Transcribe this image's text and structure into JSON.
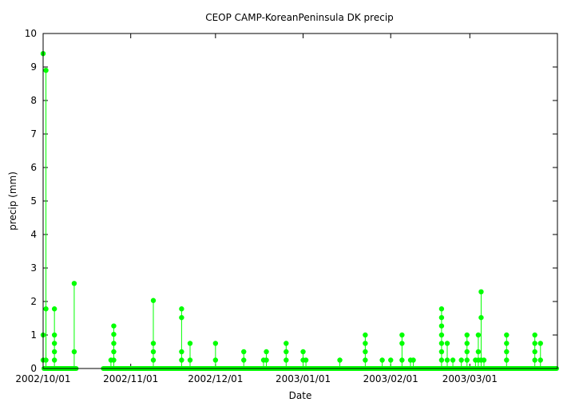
{
  "chart_data": {
    "type": "line",
    "title": "CEOP CAMP-KoreanPeninsula DK  precip",
    "xlabel": "Date",
    "ylabel": "precip (mm)",
    "xlim": [
      "2002-10-01",
      "2003-04-01"
    ],
    "ylim": [
      0,
      10
    ],
    "x_ticks": [
      "2002/10/01",
      "2002/11/01",
      "2002/12/01",
      "2003/01/01",
      "2003/02/01",
      "2003/03/01"
    ],
    "y_ticks": [
      0,
      1,
      2,
      3,
      4,
      5,
      6,
      7,
      8,
      9,
      10
    ],
    "grid": false,
    "legend": "none",
    "series_color": "#00ff00",
    "baseline_periods": [
      [
        "2002-10-01",
        "2002-10-13"
      ],
      [
        "2002-10-22",
        "2003-04-01"
      ]
    ],
    "events": [
      {
        "date": "2002-10-01",
        "values": [
          0.25,
          1.0,
          9.4
        ]
      },
      {
        "date": "2002-10-02",
        "values": [
          0.25,
          8.9
        ]
      },
      {
        "date": "2002-10-02",
        "values": [
          1.78
        ]
      },
      {
        "date": "2002-10-05",
        "values": [
          0.25,
          0.5,
          0.75,
          1.0,
          1.78
        ]
      },
      {
        "date": "2002-10-12",
        "values": [
          0.5,
          2.54
        ]
      },
      {
        "date": "2002-10-25",
        "values": [
          0.25
        ]
      },
      {
        "date": "2002-10-26",
        "values": [
          0.25,
          0.5,
          0.75,
          1.02,
          1.27
        ]
      },
      {
        "date": "2002-11-09",
        "values": [
          0.25,
          0.5,
          0.75,
          2.03
        ]
      },
      {
        "date": "2002-11-19",
        "values": [
          0.25,
          0.5,
          1.52,
          1.78
        ]
      },
      {
        "date": "2002-11-22",
        "values": [
          0.25,
          0.75
        ]
      },
      {
        "date": "2002-12-01",
        "values": [
          0.25,
          0.75
        ]
      },
      {
        "date": "2002-12-11",
        "values": [
          0.25,
          0.5
        ]
      },
      {
        "date": "2002-12-18",
        "values": [
          0.25
        ]
      },
      {
        "date": "2002-12-19",
        "values": [
          0.25,
          0.5
        ]
      },
      {
        "date": "2002-12-26",
        "values": [
          0.25,
          0.5,
          0.75
        ]
      },
      {
        "date": "2003-01-01",
        "values": [
          0.25,
          0.5
        ]
      },
      {
        "date": "2003-01-02",
        "values": [
          0.25
        ]
      },
      {
        "date": "2003-01-14",
        "values": [
          0.25
        ]
      },
      {
        "date": "2003-01-23",
        "values": [
          0.25,
          0.5,
          0.75,
          1.0
        ]
      },
      {
        "date": "2003-01-29",
        "values": [
          0.25
        ]
      },
      {
        "date": "2003-02-01",
        "values": [
          0.25
        ]
      },
      {
        "date": "2003-02-05",
        "values": [
          0.25,
          0.75,
          1.0
        ]
      },
      {
        "date": "2003-02-08",
        "values": [
          0.25
        ]
      },
      {
        "date": "2003-02-09",
        "values": [
          0.25
        ]
      },
      {
        "date": "2003-02-19",
        "values": [
          0.25,
          0.5,
          0.75,
          1.0,
          1.27,
          1.52,
          1.78
        ]
      },
      {
        "date": "2003-02-21",
        "values": [
          0.25,
          0.75
        ]
      },
      {
        "date": "2003-02-23",
        "values": [
          0.25
        ]
      },
      {
        "date": "2003-02-26",
        "values": [
          0.25
        ]
      },
      {
        "date": "2003-02-28",
        "values": [
          0.25,
          0.5,
          0.75,
          1.0
        ]
      },
      {
        "date": "2003-03-03",
        "values": [
          0.25
        ]
      },
      {
        "date": "2003-03-04",
        "values": [
          0.25,
          0.5,
          1.0
        ]
      },
      {
        "date": "2003-03-05",
        "values": [
          0.25,
          1.52,
          2.29
        ]
      },
      {
        "date": "2003-03-06",
        "values": [
          0.25
        ]
      },
      {
        "date": "2003-03-14",
        "values": [
          0.25,
          0.5,
          0.75,
          1.0
        ]
      },
      {
        "date": "2003-03-24",
        "values": [
          0.25,
          0.5,
          0.75,
          1.0
        ]
      },
      {
        "date": "2003-03-26",
        "values": [
          0.25,
          0.75
        ]
      }
    ]
  }
}
